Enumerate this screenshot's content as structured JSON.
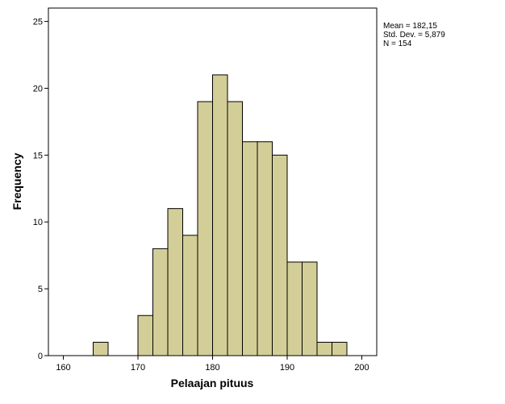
{
  "chart_data": {
    "type": "histogram",
    "x_label": "Pelaajan pituus",
    "y_label": "Frequency",
    "annotations": [
      "Mean = 182,15",
      "Std. Dev. = 5,879",
      "N = 154"
    ],
    "bins": [
      164,
      166,
      168,
      170,
      172,
      174,
      176,
      178,
      180,
      182,
      184,
      186,
      188,
      190,
      192,
      194,
      196,
      198
    ],
    "values": [
      1,
      0,
      0,
      3,
      8,
      11,
      9,
      19,
      21,
      19,
      16,
      16,
      15,
      7,
      7,
      1,
      1
    ],
    "color": "#d3ce97",
    "xlim": [
      158,
      202
    ],
    "xticks": [
      160,
      170,
      180,
      190,
      200
    ],
    "ylim": [
      0,
      26
    ],
    "yticks": [
      0,
      5,
      10,
      15,
      20,
      25
    ]
  }
}
